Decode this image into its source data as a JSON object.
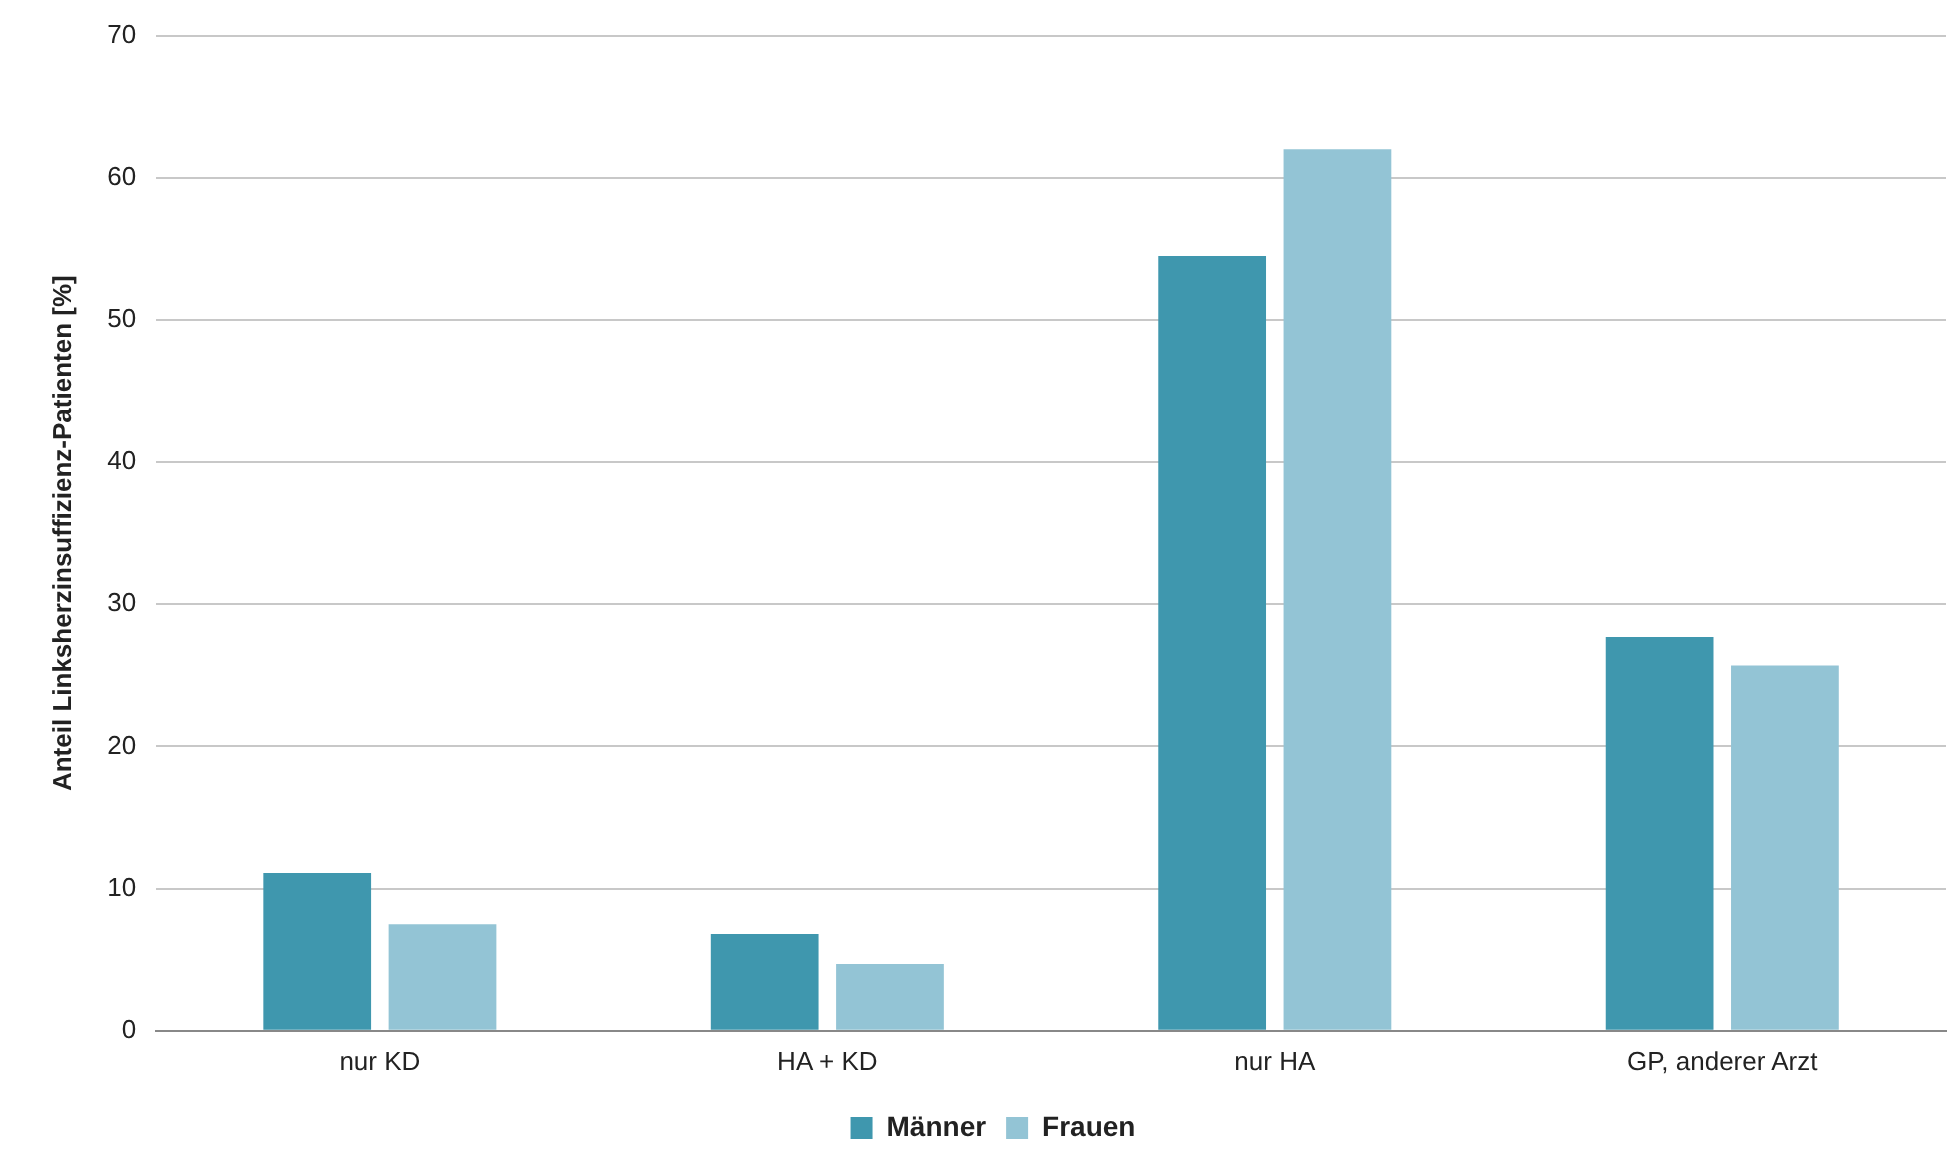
{
  "chart_data": {
    "type": "bar",
    "ylabel": "Anteil Linksherzinsuffizienz-Patienten [%]",
    "categories": [
      "nur KD",
      "HA + KD",
      "nur HA",
      "GP, anderer Arzt"
    ],
    "series": [
      {
        "name": "Männer",
        "color": "#3f97ae",
        "values": [
          11.1,
          6.8,
          54.5,
          27.7
        ]
      },
      {
        "name": "Frauen",
        "color": "#93c4d5",
        "values": [
          7.5,
          4.7,
          62.0,
          25.7
        ]
      }
    ],
    "ylim": [
      0,
      70
    ],
    "yticks": [
      0,
      10,
      20,
      30,
      40,
      50,
      60,
      70
    ],
    "grid": "y",
    "legend": "bottom"
  }
}
